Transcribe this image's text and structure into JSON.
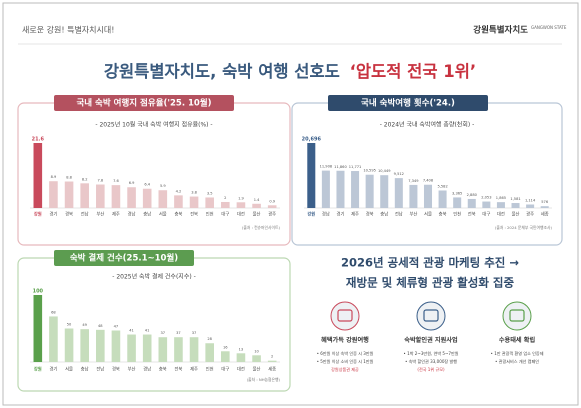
{
  "header": {
    "slogan": "새로운 강원! 특별자치시대!",
    "logo": "강원특별자치도",
    "logo_en": "GANGWON STATE"
  },
  "title": {
    "main": "강원특별자치도, 숙박 여행 선호도",
    "highlight": "‘압도적 전국 1위’"
  },
  "chart_data": [
    {
      "type": "bar",
      "title": "국내 숙박 여행지 점유율('25. 10월)",
      "subtitle": "- 2025년 10월 국내 숙박 여행지 점유율(%) -",
      "source": "(출처 : 컨슈머인사이트)",
      "categories": [
        "강원",
        "경기",
        "경북",
        "전남",
        "부산",
        "제주",
        "경남",
        "충남",
        "서울",
        "충북",
        "전북",
        "인천",
        "대구",
        "대전",
        "울산",
        "광주"
      ],
      "values": [
        21.6,
        8.9,
        8.8,
        8.2,
        7.8,
        7.6,
        6.9,
        6.4,
        5.9,
        4.2,
        3.8,
        3.5,
        2,
        1.9,
        1.4,
        0.9
      ],
      "color": "#e9c7c9",
      "highlight_color": "#c94a5c",
      "header_color": "#b4515f",
      "border_color": "#e7b9bd"
    },
    {
      "type": "bar",
      "title": "국내 숙박여행 횟수('24.)",
      "subtitle": "- 2024년 국내 숙박여행 총량(천회) -",
      "source": "(출처 : 2024 문체부 국민여행조사)",
      "categories": [
        "강원",
        "경남",
        "경기",
        "제주",
        "경북",
        "충남",
        "전남",
        "부산",
        "서울",
        "충북",
        "인천",
        "전북",
        "대구",
        "대전",
        "울산",
        "광주",
        "세종"
      ],
      "values": [
        20696,
        11908,
        11860,
        11771,
        10595,
        10449,
        9512,
        7349,
        7408,
        5582,
        3365,
        2880,
        2053,
        1865,
        1581,
        1114,
        576
      ],
      "value_labels": [
        "20,696",
        "11,908",
        "11,860",
        "11,771",
        "10,595",
        "10,449",
        "9,512",
        "7,349",
        "7,408",
        "5,582",
        "3,365",
        "2,880",
        "2,053",
        "1,865",
        "1,581",
        "1,114",
        "576"
      ],
      "color": "#bcc7d6",
      "highlight_color": "#3b5f8a",
      "header_color": "#2f4b6c",
      "border_color": "#b9c6d6"
    },
    {
      "type": "bar",
      "title": "숙박 결제 건수(25.1~10월)",
      "subtitle": "- 2025년 숙박 결제 건수(지수) -",
      "source": "(출처 : NH농협은행)",
      "categories": [
        "강원",
        "경기",
        "서울",
        "충남",
        "전남",
        "경북",
        "부산",
        "경남",
        "충북",
        "전북",
        "제주",
        "인천",
        "대구",
        "대전",
        "울산",
        "세종"
      ],
      "values": [
        100,
        68,
        50,
        49,
        48,
        47,
        41,
        41,
        37,
        37,
        37,
        28,
        16,
        13,
        10,
        2
      ],
      "color": "#c6ddbc",
      "highlight_color": "#5aa04b",
      "header_color": "#5c9c50",
      "border_color": "#bcd8b2"
    }
  ],
  "plan": {
    "line1": "2026년 공세적 관광 마케팅 추진 →",
    "line2": "재방문 및 체류형 관광 활성화 집중",
    "cards": [
      {
        "title": "혜택가득 강원여행",
        "lines": [
          "• 6만원 이상 숙박 인증 시 3만원",
          "• 5만원 이상 소비 인증 시 1만원",
          "강원상품권 제공"
        ]
      },
      {
        "title": "숙박할인권 지원사업",
        "lines": [
          "• 1박 2~3만원, 연박 5~7만원",
          "• 숙박 할인권 33,000장 발행",
          "(전국 1위 규모)"
        ]
      },
      {
        "title": "수용태세 확립",
        "lines": [
          "• 1만 관광객 환영 업소 인증제",
          "• 관광서비스 개선 캠페인"
        ]
      }
    ]
  }
}
